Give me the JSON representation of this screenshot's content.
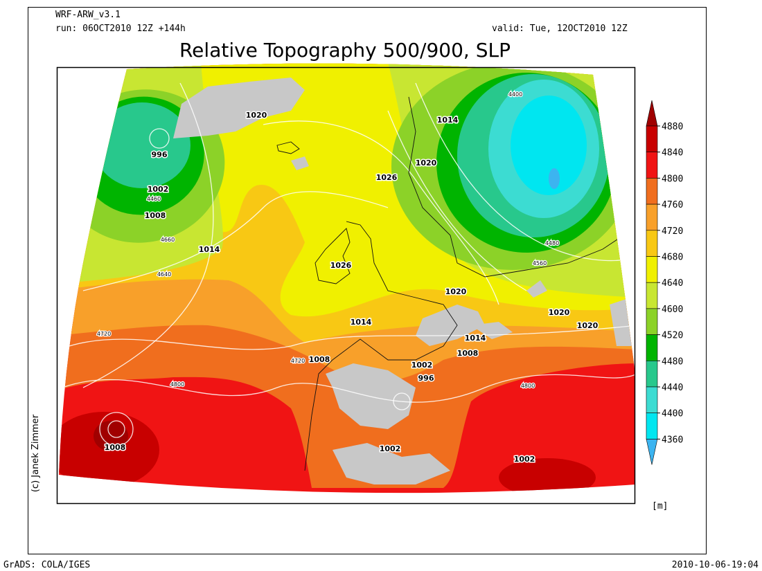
{
  "header": {
    "model": "WRF-ARW_v3.1",
    "run": "run: 06OCT2010 12Z +144h",
    "valid": "valid: Tue, 12OCT2010 12Z",
    "title": "Relative Topography 500/900, SLP"
  },
  "colorbar": {
    "ticks": [
      4880,
      4840,
      4800,
      4760,
      4720,
      4680,
      4640,
      4600,
      4520,
      4480,
      4440,
      4400,
      4360
    ],
    "colors": [
      "#a00000",
      "#c80000",
      "#f01414",
      "#f06e1e",
      "#f8a02a",
      "#f8c814",
      "#f0f000",
      "#c8e632",
      "#8cd228",
      "#00b400",
      "#28c88c",
      "#3cdcd2",
      "#00e6f0",
      "#3cb4f0"
    ],
    "unit": "[m]"
  },
  "isobar_labels": [
    996,
    1002,
    1008,
    1014,
    1020,
    1026,
    1014,
    1020,
    1026,
    1020,
    1014,
    1020,
    1020,
    1014,
    1008,
    1002,
    1008,
    996,
    1002,
    1002,
    1008
  ],
  "contour_labels": [
    4400,
    4480,
    4560,
    4460,
    4660,
    4640,
    4720,
    4800,
    4720,
    4800
  ],
  "credit": "(c) Janek Zimmer",
  "footer": {
    "left": "GrADS: COLA/IGES",
    "right": "2010-10-06-19:04"
  }
}
